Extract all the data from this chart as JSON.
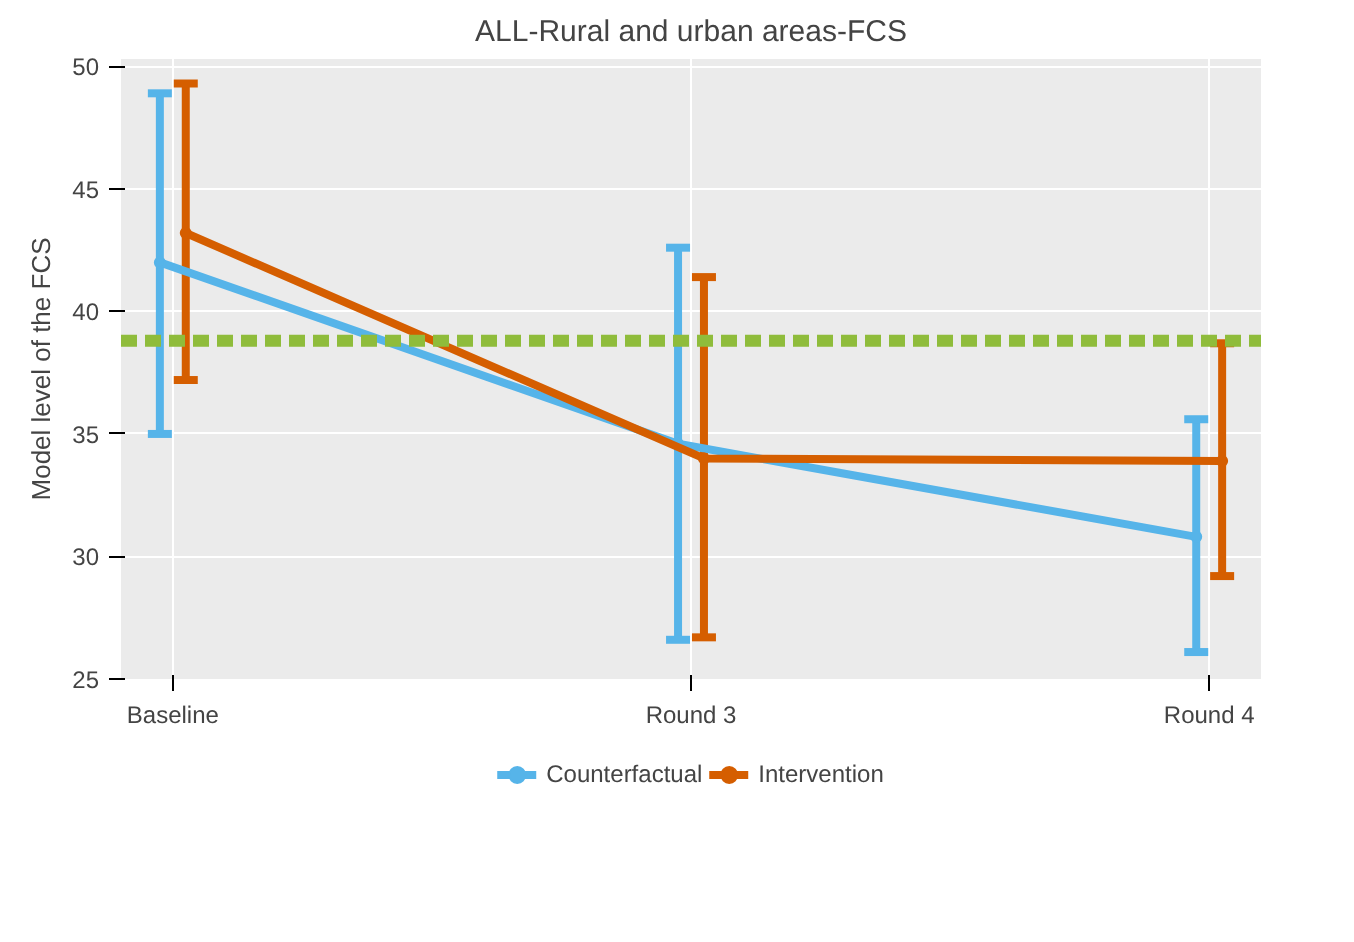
{
  "chart_data": {
    "type": "line",
    "title": "ALL-Rural and urban areas-FCS",
    "ylabel": "Model level of the FCS",
    "categories": [
      "Baseline",
      "Round 3",
      "Round 4"
    ],
    "series": [
      {
        "name": "Counterfactual",
        "color": "#56b4e9",
        "values": [
          42.0,
          34.6,
          30.8
        ],
        "errors": [
          [
            35.0,
            48.9
          ],
          [
            26.6,
            42.6
          ],
          [
            26.1,
            35.6
          ]
        ]
      },
      {
        "name": "Intervention",
        "color": "#d55e00",
        "values": [
          43.2,
          34.0,
          33.9
        ],
        "errors": [
          [
            37.2,
            49.3
          ],
          [
            26.7,
            41.4
          ],
          [
            29.2,
            38.7
          ]
        ]
      }
    ],
    "ylim": [
      25,
      50.3
    ],
    "yticks": [
      25,
      30,
      35,
      40,
      45,
      50
    ],
    "grid": true,
    "legend": "bottom",
    "marker": "circle",
    "line_style": "solid",
    "ref_lines": [
      {
        "axis": "y",
        "value": 38.8,
        "color": "#8fbc3b",
        "line_style": "dashed"
      }
    ]
  }
}
